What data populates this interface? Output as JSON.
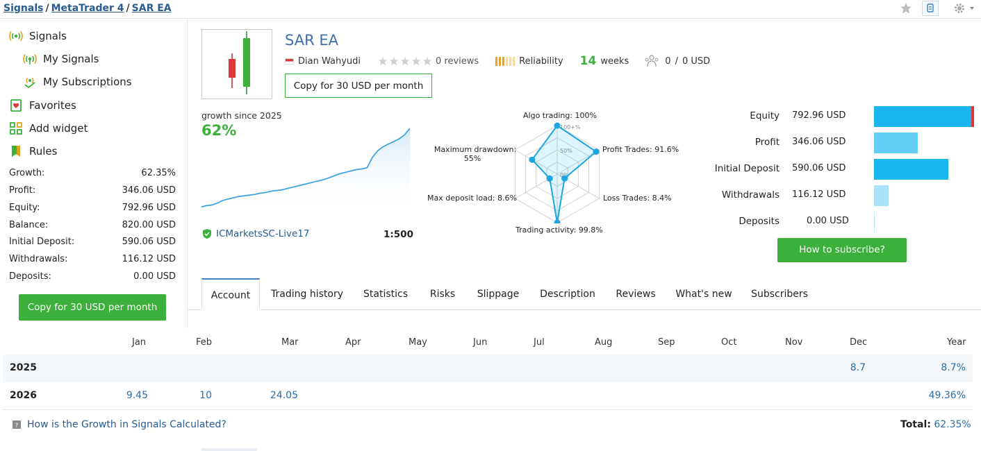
{
  "breadcrumb": {
    "items": [
      "Signals",
      "MetaTrader 4",
      "SAR EA"
    ],
    "separator": "/"
  },
  "toolbar_icons": [
    "star-icon",
    "mql-icon",
    "gear-icon"
  ],
  "sidebar": {
    "nav": [
      {
        "label": "Signals",
        "icon": "signal-icon"
      },
      {
        "label": "My Signals",
        "icon": "signal-icon"
      },
      {
        "label": "My Subscriptions",
        "icon": "signal-subscription-icon"
      },
      {
        "label": "Favorites",
        "icon": "favorites-icon"
      },
      {
        "label": "Add widget",
        "icon": "widget-icon"
      },
      {
        "label": "Rules",
        "icon": "rules-icon"
      }
    ],
    "stats": [
      {
        "label": "Growth:",
        "value": "62.35%"
      },
      {
        "label": "Profit:",
        "value": "346.06 USD"
      },
      {
        "label": "Equity:",
        "value": "792.96 USD"
      },
      {
        "label": "Balance:",
        "value": "820.00 USD"
      },
      {
        "label": "Initial Deposit:",
        "value": "590.06 USD"
      },
      {
        "label": "Withdrawals:",
        "value": "116.12 USD"
      },
      {
        "label": "Deposits:",
        "value": "0.00 USD"
      }
    ],
    "copy_button": "Copy for 30 USD per month"
  },
  "signal": {
    "title": "SAR EA",
    "author": "Dian Wahyudi",
    "reviews": "0 reviews",
    "rating_stars": 0,
    "reliability_label": "Reliability",
    "weeks_num": "14",
    "weeks_label": "weeks",
    "subscribers": "0",
    "subscribers_sep": "/",
    "subscribers_funds": "0 USD",
    "copy_button": "Copy for 30 USD per month"
  },
  "growth": {
    "label": "growth since 2025",
    "value": "62%",
    "broker": "ICMarketsSC-Live17",
    "leverage": "1:500",
    "curve": [
      2,
      3,
      3.5,
      5,
      7,
      8,
      9,
      10,
      10.5,
      11,
      11.5,
      12.5,
      13,
      14,
      14.5,
      15,
      16,
      17,
      18,
      19,
      20,
      21,
      22,
      23,
      24.5,
      26,
      27.5,
      28.5,
      29.5,
      30.5,
      31,
      32,
      40,
      45,
      48,
      50,
      52,
      54,
      57,
      62
    ]
  },
  "radar": {
    "ring_labels": [
      "100+%",
      "50%",
      "0%"
    ],
    "axes": [
      {
        "label": "Algo trading: 100%",
        "value": 1.0
      },
      {
        "label": "Profit Trades: 91.6%",
        "value": 0.916
      },
      {
        "label": "Loss Trades: 8.4%",
        "value": 0.084
      },
      {
        "label": "Trading activity: 99.8%",
        "value": 0.998
      },
      {
        "label": "Max deposit load: 8.6%",
        "value": 0.086
      },
      {
        "label": "Maximum drawdown:",
        "label2": "55%",
        "value": 0.55
      }
    ]
  },
  "balance_bars": {
    "rows": [
      {
        "label": "Equity",
        "value": "792.96 USD",
        "fraction": 1.0,
        "color": "#1ab5ec",
        "marker": "#e0363b"
      },
      {
        "label": "Profit",
        "value": "346.06 USD",
        "fraction": 0.436,
        "color": "#63cdf4"
      },
      {
        "label": "Initial Deposit",
        "value": "590.06 USD",
        "fraction": 0.744,
        "color": "#1ab5ec"
      },
      {
        "label": "Withdrawals",
        "value": "116.12 USD",
        "fraction": 0.146,
        "color": "#a9e2f9"
      },
      {
        "label": "Deposits",
        "value": "0.00 USD",
        "fraction": 0.0,
        "color": "#1ab5ec"
      }
    ],
    "subscribe_button": "How to subscribe?"
  },
  "tabs": [
    "Account",
    "Trading history",
    "Statistics",
    "Risks",
    "Slippage",
    "Description",
    "Reviews",
    "What's new",
    "Subscribers"
  ],
  "active_tab": "Account",
  "monthly": {
    "headers": [
      "Jan",
      "Feb",
      "Mar",
      "Apr",
      "May",
      "Jun",
      "Jul",
      "Aug",
      "Sep",
      "Oct",
      "Nov",
      "Dec",
      "Year"
    ],
    "rows": [
      {
        "year": "2025",
        "cells": [
          "",
          "",
          "",
          "",
          "",
          "",
          "",
          "",
          "",
          "",
          "",
          "8.7",
          "8.7%"
        ]
      },
      {
        "year": "2026",
        "cells": [
          "9.45",
          "10",
          "24.05",
          "",
          "",
          "",
          "",
          "",
          "",
          "",
          "",
          "",
          "49.36%"
        ]
      }
    ],
    "help_link": "How is the Growth in Signals Calculated?",
    "total_label": "Total:",
    "total_value": "62.35%"
  },
  "colors": {
    "brand_green": "#3bb03b",
    "link_blue": "#2a5a8f",
    "title_blue": "#3f6fa5",
    "accent_cyan": "#1ab5ec"
  }
}
